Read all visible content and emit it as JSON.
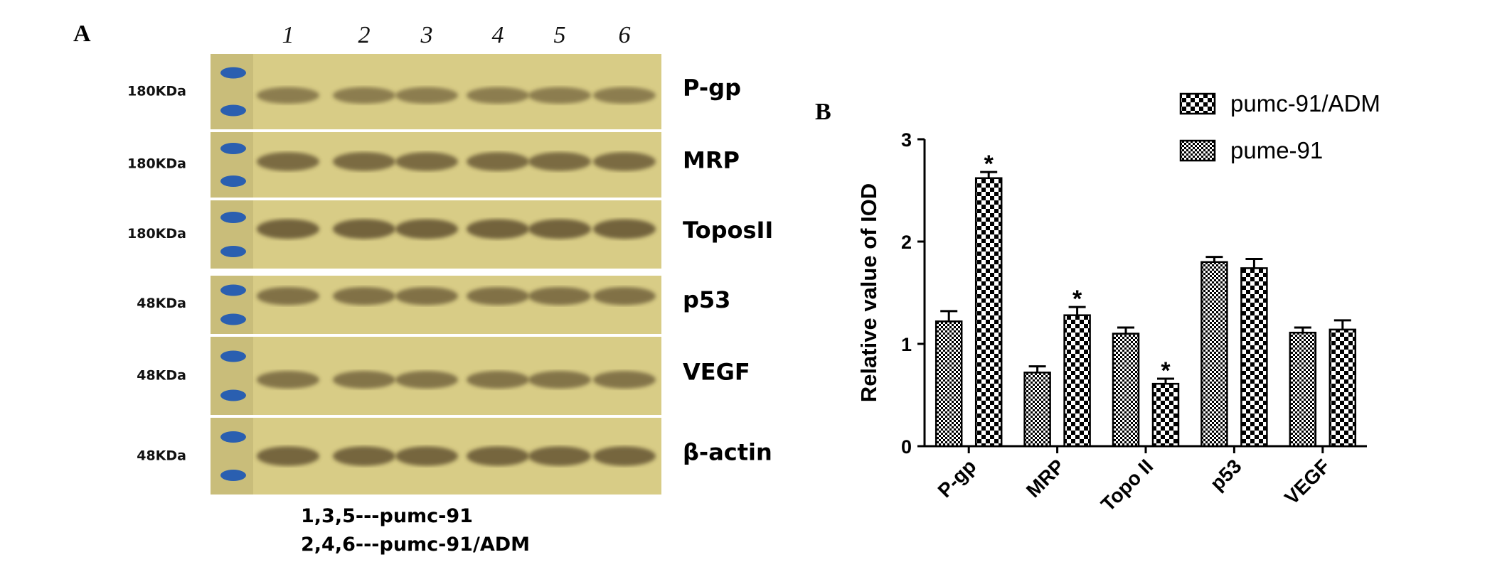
{
  "panel_a": {
    "letter": "A",
    "lanes": [
      "1",
      "2",
      "3",
      "4",
      "5",
      "6"
    ],
    "blots": [
      {
        "protein": "P-gp",
        "marker": "180KDa",
        "band_position": 0.55,
        "band_strength": 0.55
      },
      {
        "protein": "MRP",
        "marker": "180KDa",
        "band_position": 0.45,
        "band_strength": 0.85
      },
      {
        "protein": "ToposII",
        "marker": "180KDa",
        "band_position": 0.42,
        "band_strength": 1.0
      },
      {
        "protein": "p53",
        "marker": "48KDa",
        "band_position": 0.35,
        "band_strength": 0.75
      },
      {
        "protein": "VEGF",
        "marker": "48KDa",
        "band_position": 0.55,
        "band_strength": 0.7
      },
      {
        "protein": "β-actin",
        "marker": "48KDa",
        "band_position": 0.5,
        "band_strength": 0.95
      }
    ],
    "captions": [
      "1,3,5---pumc-91",
      "2,4,6---pumc-91/ADM"
    ]
  },
  "chart_data": {
    "panel_letter": "B",
    "type": "bar",
    "ylabel": "Relative value of IOD",
    "ylim": [
      0,
      3
    ],
    "yticks": [
      "0",
      "1",
      "2",
      "3"
    ],
    "categories": [
      "P-gp",
      "MRP",
      "Topo II",
      "p53",
      "VEGF"
    ],
    "series": [
      {
        "name": "pume-91",
        "values": [
          1.22,
          0.72,
          1.1,
          1.8,
          1.11
        ],
        "errors": [
          0.1,
          0.06,
          0.06,
          0.05,
          0.05
        ],
        "pattern": "fine"
      },
      {
        "name": "pumc-91/ADM",
        "values": [
          2.62,
          1.28,
          0.61,
          1.74,
          1.14
        ],
        "errors": [
          0.06,
          0.08,
          0.05,
          0.09,
          0.09
        ],
        "pattern": "coarse"
      }
    ],
    "legend_order": [
      "pumc-91/ADM",
      "pume-91"
    ],
    "legend_position": "top-right",
    "significance": [
      {
        "category": "P-gp",
        "label": "*"
      },
      {
        "category": "MRP",
        "label": "*"
      },
      {
        "category": "Topo II",
        "label": "*"
      }
    ]
  }
}
